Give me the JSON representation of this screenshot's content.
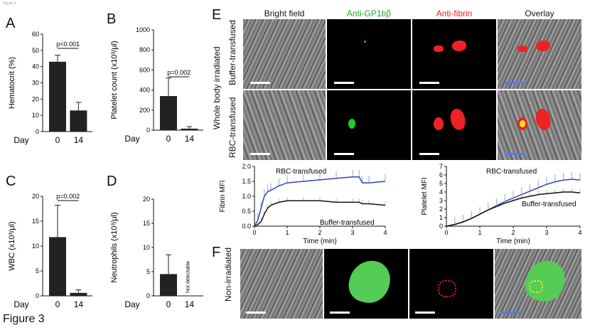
{
  "figure_label": "Figure 3",
  "corner_text": "Figure 3",
  "panels": {
    "A": {
      "letter": "A",
      "ylabel": "Hematocrit (%)",
      "pvalue": "p<0.001",
      "xday": "Day",
      "x0": "0",
      "x1": "14"
    },
    "B": {
      "letter": "B",
      "ylabel": "Platelet count (x10³/μl)",
      "pvalue": "p=0.002",
      "xday": "Day",
      "x0": "0",
      "x1": "14"
    },
    "C": {
      "letter": "C",
      "ylabel": "WBC (x10³/μl)",
      "pvalue": "p=0.002",
      "xday": "Day",
      "x0": "0",
      "x1": "14"
    },
    "D": {
      "letter": "D",
      "ylabel": "Neutrophils (x10³/μl)",
      "note": "Not detectable",
      "xday": "Day",
      "x0": "0",
      "x1": "14"
    },
    "E": {
      "letter": "E",
      "columns": [
        "Bright field",
        "Anti-GP1bβ",
        "Anti-fibrin",
        "Overlay"
      ],
      "column_colors": [
        "#111111",
        "#22aa22",
        "#dd2222",
        "#111111"
      ],
      "group_label": "Whole body irradiated",
      "rows": [
        "Buffer-transfused",
        "RBC-transfused"
      ],
      "fibrin_plot": {
        "ylabel": "Fibrin MFI",
        "xlabel": "Time (min)",
        "series_top": "RBC-transfused",
        "series_bottom": "Buffer-transfused"
      },
      "platelet_plot": {
        "ylabel": "Platelet MFI",
        "xlabel": "Time (min)",
        "series_top": "RBC-transfused",
        "series_bottom": "Buffer-transfused"
      }
    },
    "F": {
      "letter": "F",
      "row": "Non-irradiated"
    }
  },
  "chart_data": [
    {
      "type": "bar",
      "title": "",
      "ylabel": "Hematocrit (%)",
      "xlabel": "Day",
      "categories": [
        "0",
        "14"
      ],
      "values": [
        43,
        13
      ],
      "errors": [
        4,
        5
      ],
      "ylim": [
        0,
        60
      ],
      "yticks": [
        0,
        10,
        20,
        30,
        40,
        50,
        60
      ],
      "annotation": "p<0.001"
    },
    {
      "type": "bar",
      "title": "",
      "ylabel": "Platelet count (x10³/μl)",
      "xlabel": "Day",
      "categories": [
        "0",
        "14"
      ],
      "values": [
        340,
        15
      ],
      "errors": [
        180,
        20
      ],
      "ylim": [
        0,
        1000
      ],
      "yticks": [
        0,
        200,
        400,
        600,
        800,
        1000
      ],
      "annotation": "p=0.002"
    },
    {
      "type": "bar",
      "title": "",
      "ylabel": "WBC (x10³/μl)",
      "xlabel": "Day",
      "categories": [
        "0",
        "14"
      ],
      "values": [
        11.8,
        0.6
      ],
      "errors": [
        6.4,
        0.6
      ],
      "ylim": [
        0,
        20
      ],
      "yticks": [
        0,
        5,
        10,
        15,
        20
      ],
      "annotation": "p=0.002"
    },
    {
      "type": "bar",
      "title": "",
      "ylabel": "Neutrophils (x10³/μl)",
      "xlabel": "Day",
      "categories": [
        "0",
        "14"
      ],
      "values": [
        4.5,
        0
      ],
      "errors": [
        4,
        0
      ],
      "ylim": [
        0,
        20
      ],
      "yticks": [
        0,
        5,
        10,
        15,
        20
      ],
      "annotation": "Not detectable"
    },
    {
      "type": "line",
      "title": "",
      "ylabel": "Fibrin MFI",
      "xlabel": "Time (min)",
      "xlim": [
        0,
        4
      ],
      "ylim": [
        0,
        2.0
      ],
      "xticks": [
        0,
        1,
        2,
        3,
        4
      ],
      "yticks": [
        0.0,
        0.5,
        1.0,
        1.5,
        2.0
      ],
      "x": [
        0,
        0.1,
        0.2,
        0.3,
        0.4,
        0.5,
        0.75,
        1.0,
        1.5,
        2.0,
        2.5,
        3.0,
        3.2,
        3.3,
        3.5,
        4.0
      ],
      "series": [
        {
          "name": "RBC-transfused",
          "values": [
            0.0,
            0.2,
            0.6,
            1.0,
            1.15,
            1.2,
            1.35,
            1.45,
            1.5,
            1.55,
            1.6,
            1.65,
            1.65,
            1.45,
            1.45,
            1.5
          ],
          "color": "#3344bb"
        },
        {
          "name": "Buffer-transfused",
          "values": [
            0.0,
            0.05,
            0.15,
            0.4,
            0.6,
            0.7,
            0.8,
            0.85,
            0.85,
            0.85,
            0.8,
            0.8,
            0.8,
            0.75,
            0.75,
            0.7
          ],
          "color": "#111111"
        }
      ]
    },
    {
      "type": "line",
      "title": "",
      "ylabel": "Platelet MFI",
      "xlabel": "Time (min)",
      "xlim": [
        0,
        4
      ],
      "ylim": [
        0,
        7
      ],
      "xticks": [
        0,
        1,
        2,
        3,
        4
      ],
      "yticks": [
        0,
        1,
        2,
        3,
        4,
        5,
        6,
        7
      ],
      "x": [
        0,
        0.25,
        0.5,
        0.75,
        1.0,
        1.25,
        1.5,
        1.75,
        2.0,
        2.25,
        2.5,
        2.75,
        3.0,
        3.25,
        3.5,
        3.75,
        4.0
      ],
      "series": [
        {
          "name": "RBC-transfused",
          "values": [
            0.0,
            0.2,
            0.5,
            0.9,
            1.4,
            1.9,
            2.4,
            2.9,
            3.3,
            3.7,
            4.1,
            4.5,
            4.9,
            5.2,
            5.4,
            5.5,
            5.4
          ],
          "color": "#3344bb"
        },
        {
          "name": "Buffer-transfused",
          "values": [
            0.0,
            0.2,
            0.5,
            0.9,
            1.4,
            1.9,
            2.3,
            2.7,
            3.0,
            3.3,
            3.5,
            3.7,
            3.8,
            3.9,
            4.0,
            4.0,
            3.9
          ],
          "color": "#111111"
        }
      ]
    }
  ]
}
